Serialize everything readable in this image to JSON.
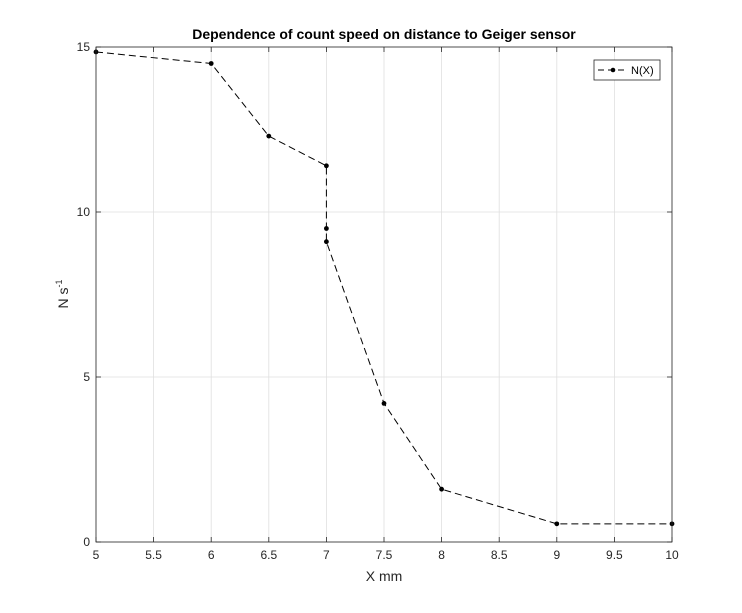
{
  "chart_data": {
    "type": "line",
    "title": "Dependence of count speed on distance to Geiger sensor",
    "xlabel": "X mm",
    "ylabel": "N s",
    "ylabel_superscript": "-1",
    "xlim": [
      5,
      10
    ],
    "ylim": [
      0,
      15
    ],
    "xticks": [
      5,
      5.5,
      6,
      6.5,
      7,
      7.5,
      8,
      8.5,
      9,
      9.5,
      10
    ],
    "xtick_labels": [
      "5",
      "5.5",
      "6",
      "6.5",
      "7",
      "7.5",
      "8",
      "8.5",
      "9",
      "9.5",
      "10"
    ],
    "yticks": [
      0,
      5,
      10,
      15
    ],
    "ytick_labels": [
      "0",
      "5",
      "10",
      "15"
    ],
    "grid": true,
    "legend_position": "top-right",
    "series": [
      {
        "name": "N(X)",
        "color": "#000000",
        "line_style": "dashed",
        "marker": "dot",
        "x": [
          5,
          6,
          6.5,
          7,
          7,
          7,
          7.5,
          8,
          9,
          10
        ],
        "y": [
          14.85,
          14.5,
          12.3,
          11.4,
          9.5,
          9.1,
          4.2,
          1.6,
          0.55,
          0.55
        ]
      }
    ]
  }
}
